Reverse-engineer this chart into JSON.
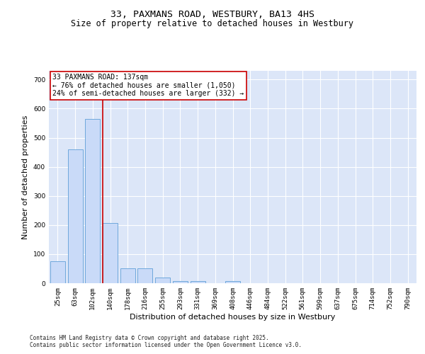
{
  "title_line1": "33, PAXMANS ROAD, WESTBURY, BA13 4HS",
  "title_line2": "Size of property relative to detached houses in Westbury",
  "xlabel": "Distribution of detached houses by size in Westbury",
  "ylabel": "Number of detached properties",
  "categories": [
    "25sqm",
    "63sqm",
    "102sqm",
    "140sqm",
    "178sqm",
    "216sqm",
    "255sqm",
    "293sqm",
    "331sqm",
    "369sqm",
    "408sqm",
    "446sqm",
    "484sqm",
    "522sqm",
    "561sqm",
    "599sqm",
    "637sqm",
    "675sqm",
    "714sqm",
    "752sqm",
    "790sqm"
  ],
  "values": [
    75,
    460,
    565,
    207,
    50,
    50,
    20,
    8,
    8,
    0,
    7,
    0,
    0,
    0,
    0,
    0,
    0,
    0,
    0,
    0,
    0
  ],
  "bar_color": "#c9daf8",
  "bar_edge_color": "#6fa8dc",
  "vline_color": "#cc0000",
  "annotation_text": "33 PAXMANS ROAD: 137sqm\n← 76% of detached houses are smaller (1,050)\n24% of semi-detached houses are larger (332) →",
  "annotation_box_color": "#ffffff",
  "annotation_box_edge": "#cc0000",
  "ylim": [
    0,
    730
  ],
  "yticks": [
    0,
    100,
    200,
    300,
    400,
    500,
    600,
    700
  ],
  "footer_text": "Contains HM Land Registry data © Crown copyright and database right 2025.\nContains public sector information licensed under the Open Government Licence v3.0.",
  "bg_color": "#ffffff",
  "plot_bg_color": "#dce6f8",
  "grid_color": "#ffffff",
  "title_fontsize": 9.5,
  "subtitle_fontsize": 8.5,
  "tick_fontsize": 6.5,
  "label_fontsize": 8,
  "annotation_fontsize": 7,
  "footer_fontsize": 5.5
}
